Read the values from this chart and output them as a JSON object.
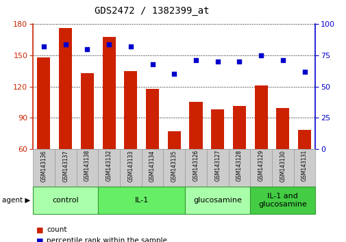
{
  "title": "GDS2472 / 1382399_at",
  "samples": [
    "GSM143136",
    "GSM143137",
    "GSM143138",
    "GSM143132",
    "GSM143133",
    "GSM143134",
    "GSM143135",
    "GSM143126",
    "GSM143127",
    "GSM143128",
    "GSM143129",
    "GSM143130",
    "GSM143131"
  ],
  "counts": [
    148,
    176,
    133,
    168,
    135,
    118,
    77,
    105,
    98,
    101,
    121,
    99,
    78
  ],
  "percentiles": [
    82,
    84,
    80,
    84,
    82,
    68,
    60,
    71,
    70,
    70,
    75,
    71,
    62
  ],
  "ylim_left": [
    60,
    180
  ],
  "ylim_right": [
    0,
    100
  ],
  "yticks_left": [
    60,
    90,
    120,
    150,
    180
  ],
  "yticks_right": [
    0,
    25,
    50,
    75,
    100
  ],
  "bar_color": "#cc2200",
  "dot_color": "#0000cc",
  "groups": [
    {
      "label": "control",
      "start": 0,
      "end": 3,
      "color": "#aaffaa"
    },
    {
      "label": "IL-1",
      "start": 3,
      "end": 7,
      "color": "#66ee66"
    },
    {
      "label": "glucosamine",
      "start": 7,
      "end": 10,
      "color": "#aaffaa"
    },
    {
      "label": "IL-1 and\nglucosamine",
      "start": 10,
      "end": 13,
      "color": "#44cc44"
    }
  ],
  "legend_count_label": "count",
  "legend_percentile_label": "percentile rank within the sample",
  "title_fontsize": 10,
  "axis_fontsize": 8,
  "tick_fontsize": 8,
  "sample_fontsize": 5.5,
  "group_fontsize": 8
}
